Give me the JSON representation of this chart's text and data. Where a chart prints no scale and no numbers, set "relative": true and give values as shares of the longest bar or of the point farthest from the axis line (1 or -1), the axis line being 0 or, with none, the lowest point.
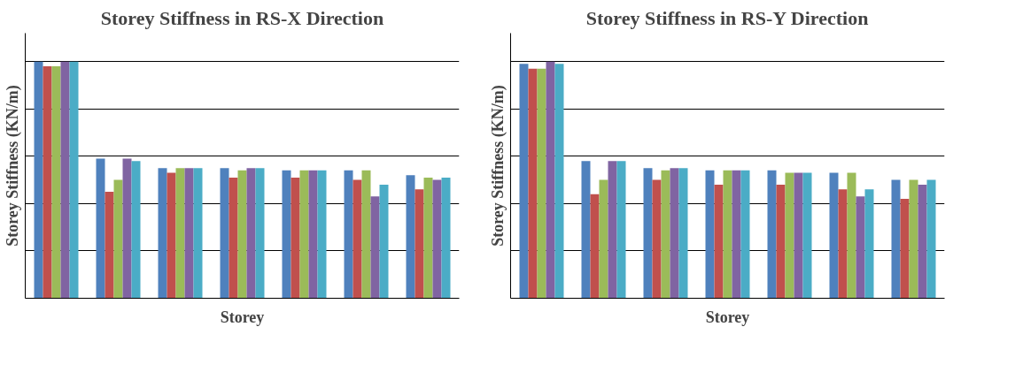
{
  "chart_data": [
    {
      "type": "bar",
      "title": "Storey Stiffness in RS-X Direction",
      "xlabel": "Storey",
      "ylabel": "Storey Stiffness (KN/m)",
      "relative": true,
      "grid": "y",
      "categories": [
        null,
        null,
        null,
        null,
        null,
        null,
        null
      ],
      "series": [
        {
          "color": "#4f81bd",
          "values": [
            1.0,
            0.59,
            0.55,
            0.55,
            0.54,
            0.54,
            0.52
          ]
        },
        {
          "color": "#c0504d",
          "values": [
            0.98,
            0.45,
            0.53,
            0.51,
            0.51,
            0.5,
            0.46
          ]
        },
        {
          "color": "#9bbb59",
          "values": [
            0.98,
            0.5,
            0.55,
            0.54,
            0.54,
            0.54,
            0.51
          ]
        },
        {
          "color": "#8064a2",
          "values": [
            1.0,
            0.59,
            0.55,
            0.55,
            0.54,
            0.43,
            0.5
          ]
        },
        {
          "color": "#4bacc6",
          "values": [
            1.0,
            0.58,
            0.55,
            0.55,
            0.54,
            0.48,
            0.51
          ]
        }
      ]
    },
    {
      "type": "bar",
      "title": "Storey Stiffness in RS-Y Direction",
      "xlabel": "Storey",
      "ylabel": "Storey Stiffness (KN/m)",
      "relative": true,
      "grid": "y",
      "categories": [
        null,
        null,
        null,
        null,
        null,
        null,
        null
      ],
      "series": [
        {
          "color": "#4f81bd",
          "values": [
            0.99,
            0.58,
            0.55,
            0.54,
            0.54,
            0.53,
            0.5
          ]
        },
        {
          "color": "#c0504d",
          "values": [
            0.97,
            0.44,
            0.5,
            0.48,
            0.48,
            0.46,
            0.42
          ]
        },
        {
          "color": "#9bbb59",
          "values": [
            0.97,
            0.5,
            0.54,
            0.54,
            0.53,
            0.53,
            0.5
          ]
        },
        {
          "color": "#8064a2",
          "values": [
            1.0,
            0.58,
            0.55,
            0.54,
            0.53,
            0.43,
            0.48
          ]
        },
        {
          "color": "#4bacc6",
          "values": [
            0.99,
            0.58,
            0.55,
            0.54,
            0.53,
            0.46,
            0.5
          ]
        }
      ]
    }
  ]
}
